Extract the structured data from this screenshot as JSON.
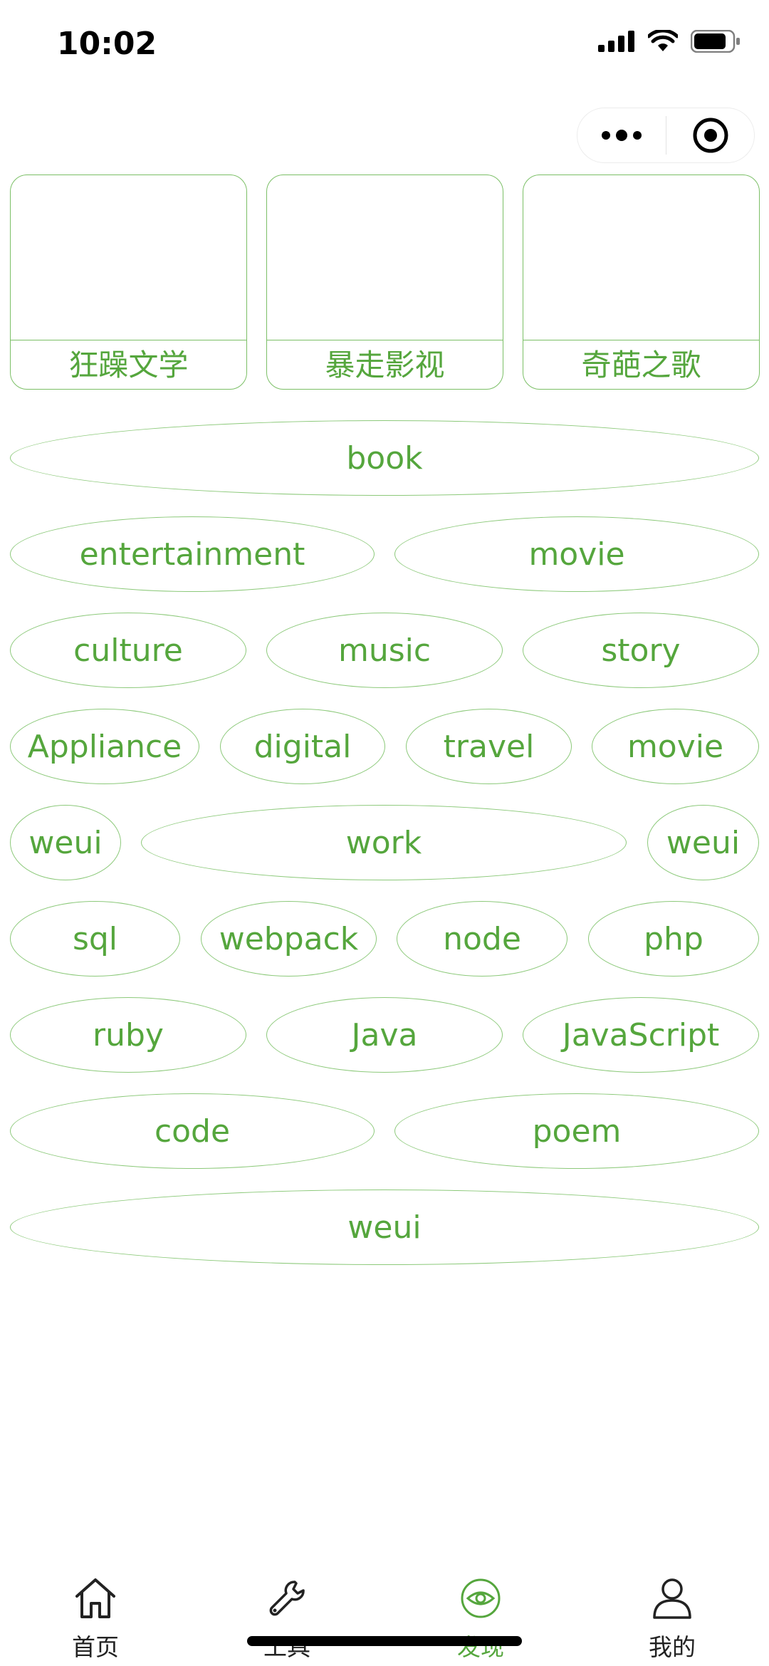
{
  "status_bar": {
    "time": "10:02"
  },
  "capsule": {
    "more_icon": "more-dots-icon",
    "close_icon": "target-circle-icon"
  },
  "cards": [
    {
      "label": "狂躁文学"
    },
    {
      "label": "暴走影视"
    },
    {
      "label": "奇葩之歌"
    }
  ],
  "tags": [
    "book",
    "entertainment",
    "movie",
    "culture",
    "music",
    "story",
    "Appliance",
    "digital",
    "travel",
    "movie",
    "weui",
    "work",
    "weui",
    "sql",
    "webpack",
    "node",
    "php",
    "ruby",
    "Java",
    "JavaScript",
    "code",
    "poem",
    "weui"
  ],
  "tabbar": {
    "items": [
      {
        "label": "首页",
        "icon": "home-icon"
      },
      {
        "label": "工具",
        "icon": "wrench-icon"
      },
      {
        "label": "发现",
        "icon": "eye-icon",
        "active": true
      },
      {
        "label": "我的",
        "icon": "user-icon"
      }
    ]
  },
  "colors": {
    "accent": "#55a63d",
    "border": "#7bbf66"
  }
}
